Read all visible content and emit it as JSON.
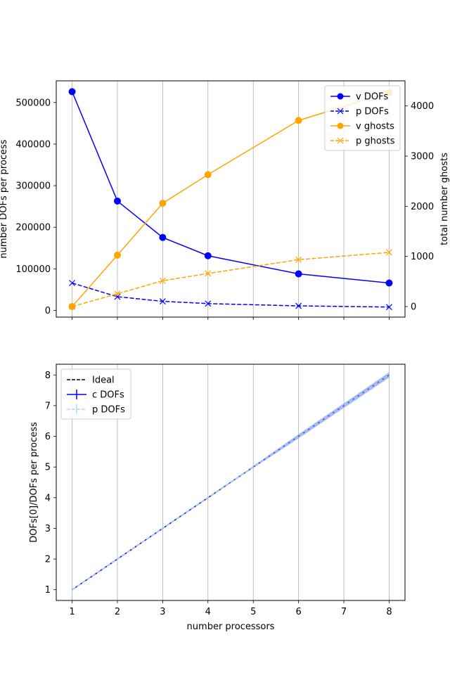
{
  "chart_data": [
    {
      "type": "line",
      "xlabel": "",
      "ylabel": "number DOFs per process",
      "ylabel_right": "total number ghosts",
      "x": [
        1,
        2,
        3,
        4,
        6,
        8
      ],
      "xticks": [
        1,
        2,
        3,
        4,
        5,
        6,
        7,
        8
      ],
      "xlim": [
        0.65,
        8.35
      ],
      "ylim": [
        -16000,
        552000
      ],
      "ylim_right": [
        -210,
        4500
      ],
      "yticks": [
        0,
        100000,
        200000,
        300000,
        400000,
        500000
      ],
      "yticks_right": [
        0,
        1000,
        2000,
        3000,
        4000
      ],
      "grid": "vertical",
      "legend_position": "top-right",
      "series": [
        {
          "name": "v DOFs",
          "axis": "left",
          "color": "#0000ff",
          "dash": "solid",
          "marker": "circle",
          "values": [
            526000,
            263000,
            175500,
            131500,
            88000,
            66000
          ]
        },
        {
          "name": "p DOFs",
          "axis": "left",
          "color": "#0000ff",
          "dash": "dashed",
          "marker": "x",
          "values": [
            66000,
            33000,
            22000,
            16500,
            11000,
            8200
          ]
        },
        {
          "name": "v ghosts",
          "axis": "right",
          "color": "#ffa500",
          "dash": "solid",
          "marker": "circle",
          "values": [
            0,
            1025,
            2060,
            2630,
            3710,
            4270
          ]
        },
        {
          "name": "p ghosts",
          "axis": "right",
          "color": "#ffa500",
          "dash": "dashed",
          "marker": "x",
          "values": [
            0,
            255,
            515,
            660,
            935,
            1080
          ]
        }
      ]
    },
    {
      "type": "line",
      "xlabel": "number processors",
      "ylabel": "DOFs[0]/DOFs per process",
      "x": [
        1,
        2,
        3,
        4,
        6,
        8
      ],
      "xticks": [
        1,
        2,
        3,
        4,
        5,
        6,
        7,
        8
      ],
      "xlim": [
        0.65,
        8.35
      ],
      "ylim": [
        0.65,
        8.35
      ],
      "yticks": [
        1,
        2,
        3,
        4,
        5,
        6,
        7,
        8
      ],
      "grid": "vertical",
      "legend_position": "top-left",
      "series": [
        {
          "name": "Ideal",
          "color": "#000000",
          "dash": "dashed",
          "marker": "none",
          "values": [
            1,
            2,
            3,
            4,
            6,
            8
          ]
        },
        {
          "name": "c DOFs",
          "color": "#0000ff",
          "dash": "solid",
          "marker": "errorbar",
          "values": [
            1,
            2,
            3,
            4,
            6,
            8
          ],
          "error": [
            0,
            0,
            0,
            0,
            0.06,
            0.08
          ]
        },
        {
          "name": "p DOFs",
          "color": "#add8e6",
          "dash": "dashed",
          "marker": "errorbar",
          "values": [
            1,
            2,
            3,
            4,
            6,
            8
          ],
          "error": [
            0,
            0,
            0,
            0,
            0.08,
            0.1
          ]
        }
      ]
    }
  ]
}
